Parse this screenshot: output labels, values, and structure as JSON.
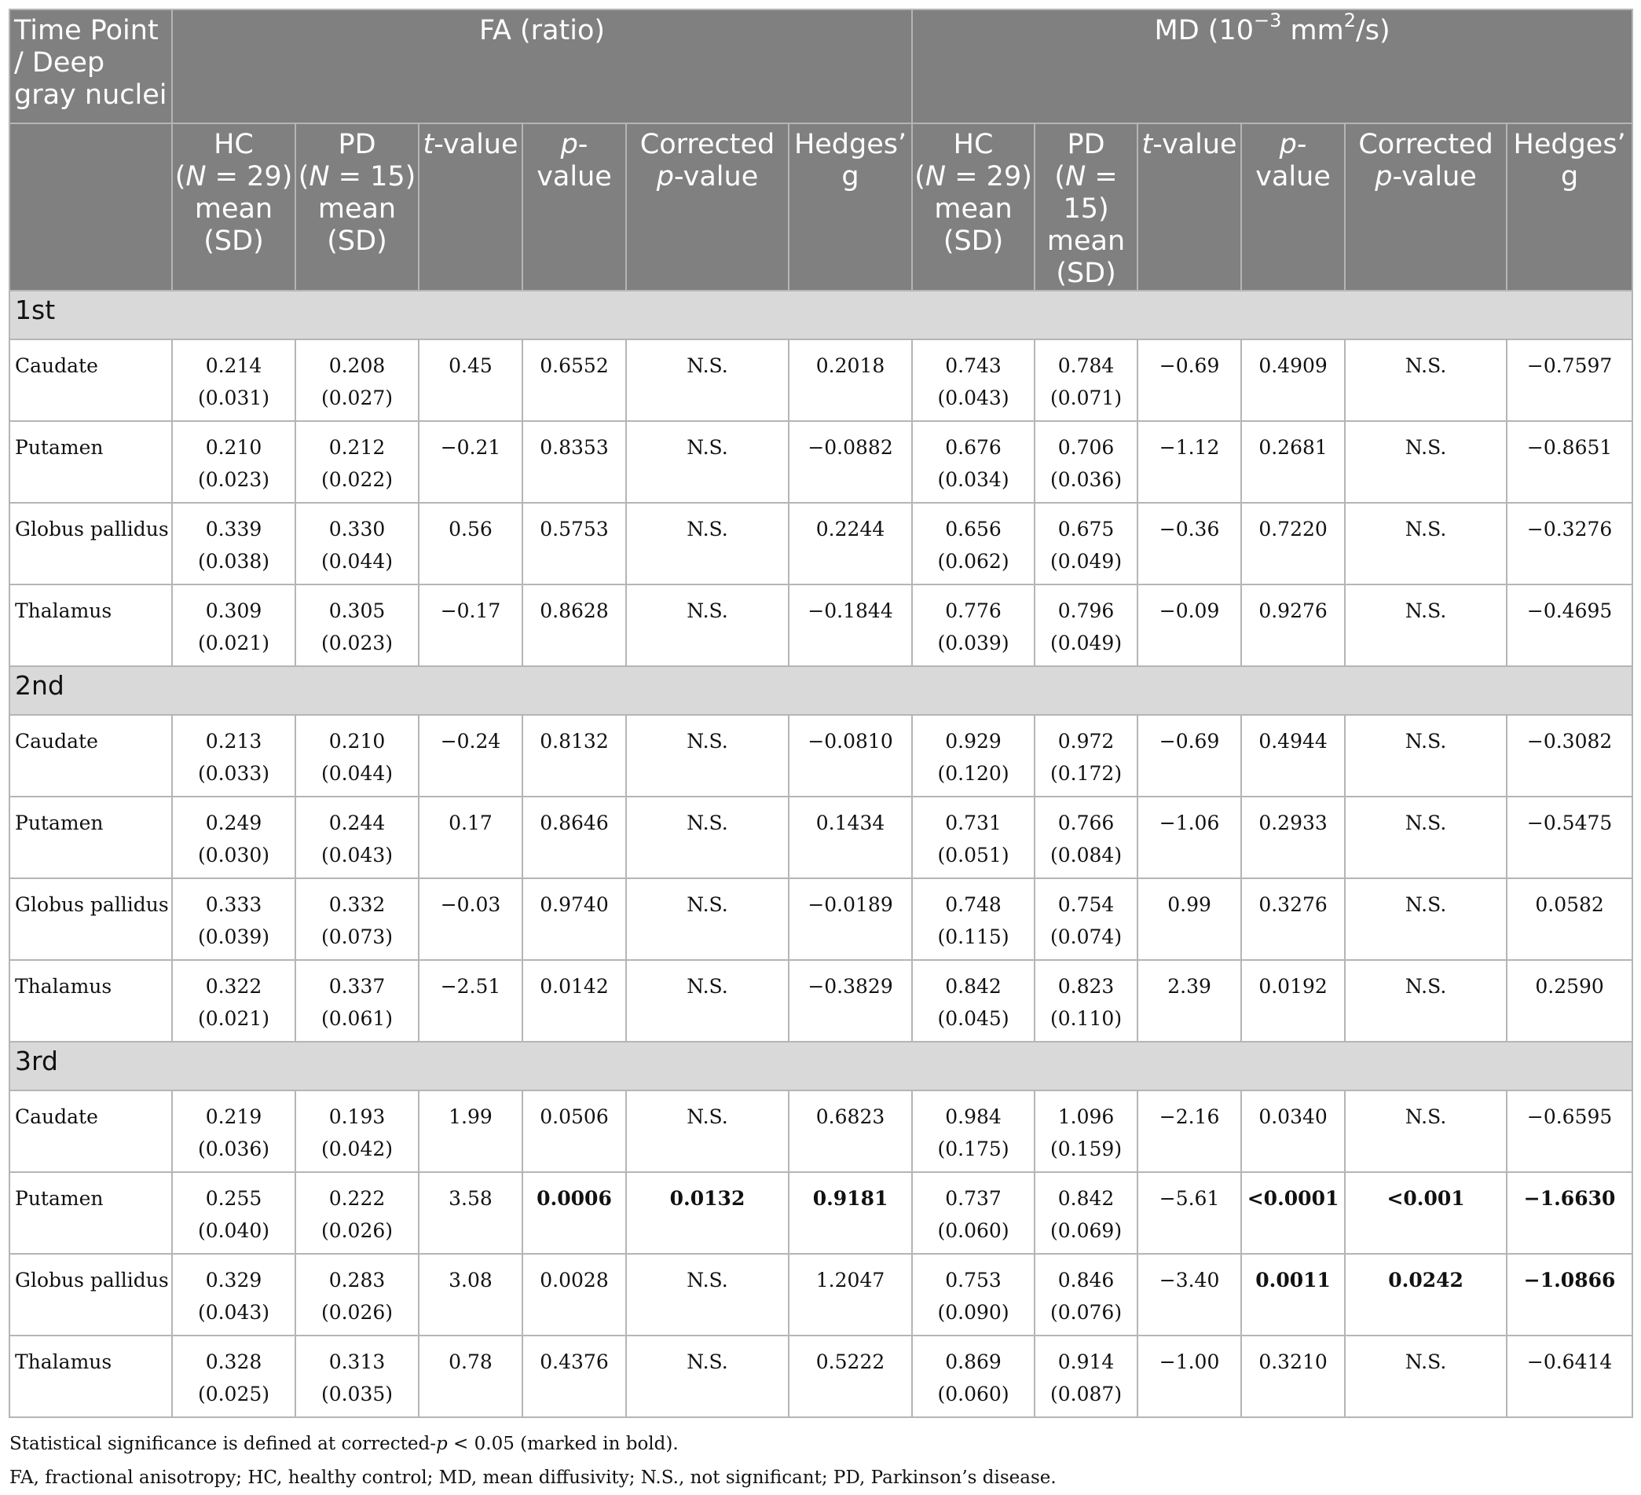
{
  "header": {
    "corner": "Time Point / Deep gray nuclei",
    "fa_group": "FA (ratio)",
    "md_group_prefix": "MD (10",
    "md_exp": "−3",
    "md_unit_mid": " mm",
    "md_unit_exp": "2",
    "md_unit_end": "/s)",
    "hc_label": "HC",
    "hc_n": "(N = 29)",
    "pd_label": "PD",
    "pd_n": "(N = 15)",
    "mean": "mean",
    "sd": "(SD)",
    "t_value": "t-value",
    "p_value": "p-value",
    "corrected_p": "Corrected p-value",
    "hedges": "Hedges’ g"
  },
  "sections": [
    {
      "label": "1st",
      "rows": [
        {
          "name": "Caudate",
          "fa": {
            "hc": [
              "0.214",
              "(0.031)"
            ],
            "pd": [
              "0.208",
              "(0.027)"
            ],
            "t": "0.45",
            "p": "0.6552",
            "cp": "N.S.",
            "g": "0.2018",
            "bold": []
          },
          "md": {
            "hc": [
              "0.743",
              "(0.043)"
            ],
            "pd": [
              "0.784",
              "(0.071)"
            ],
            "t": "−0.69",
            "p": "0.4909",
            "cp": "N.S.",
            "g": "−0.7597",
            "bold": []
          }
        },
        {
          "name": "Putamen",
          "fa": {
            "hc": [
              "0.210",
              "(0.023)"
            ],
            "pd": [
              "0.212",
              "(0.022)"
            ],
            "t": "−0.21",
            "p": "0.8353",
            "cp": "N.S.",
            "g": "−0.0882",
            "bold": []
          },
          "md": {
            "hc": [
              "0.676",
              "(0.034)"
            ],
            "pd": [
              "0.706",
              "(0.036)"
            ],
            "t": "−1.12",
            "p": "0.2681",
            "cp": "N.S.",
            "g": "−0.8651",
            "bold": []
          }
        },
        {
          "name": "Globus pallidus",
          "fa": {
            "hc": [
              "0.339",
              "(0.038)"
            ],
            "pd": [
              "0.330",
              "(0.044)"
            ],
            "t": "0.56",
            "p": "0.5753",
            "cp": "N.S.",
            "g": "0.2244",
            "bold": []
          },
          "md": {
            "hc": [
              "0.656",
              "(0.062)"
            ],
            "pd": [
              "0.675",
              "(0.049)"
            ],
            "t": "−0.36",
            "p": "0.7220",
            "cp": "N.S.",
            "g": "−0.3276",
            "bold": []
          }
        },
        {
          "name": "Thalamus",
          "fa": {
            "hc": [
              "0.309",
              "(0.021)"
            ],
            "pd": [
              "0.305",
              "(0.023)"
            ],
            "t": "−0.17",
            "p": "0.8628",
            "cp": "N.S.",
            "g": "−0.1844",
            "bold": []
          },
          "md": {
            "hc": [
              "0.776",
              "(0.039)"
            ],
            "pd": [
              "0.796",
              "(0.049)"
            ],
            "t": "−0.09",
            "p": "0.9276",
            "cp": "N.S.",
            "g": "−0.4695",
            "bold": []
          }
        }
      ]
    },
    {
      "label": "2nd",
      "rows": [
        {
          "name": "Caudate",
          "fa": {
            "hc": [
              "0.213",
              "(0.033)"
            ],
            "pd": [
              "0.210",
              "(0.044)"
            ],
            "t": "−0.24",
            "p": "0.8132",
            "cp": "N.S.",
            "g": "−0.0810",
            "bold": []
          },
          "md": {
            "hc": [
              "0.929",
              "(0.120)"
            ],
            "pd": [
              "0.972",
              "(0.172)"
            ],
            "t": "−0.69",
            "p": "0.4944",
            "cp": "N.S.",
            "g": "−0.3082",
            "bold": []
          }
        },
        {
          "name": "Putamen",
          "fa": {
            "hc": [
              "0.249",
              "(0.030)"
            ],
            "pd": [
              "0.244",
              "(0.043)"
            ],
            "t": "0.17",
            "p": "0.8646",
            "cp": "N.S.",
            "g": "0.1434",
            "bold": []
          },
          "md": {
            "hc": [
              "0.731",
              "(0.051)"
            ],
            "pd": [
              "0.766",
              "(0.084)"
            ],
            "t": "−1.06",
            "p": "0.2933",
            "cp": "N.S.",
            "g": "−0.5475",
            "bold": []
          }
        },
        {
          "name": "Globus pallidus",
          "fa": {
            "hc": [
              "0.333",
              "(0.039)"
            ],
            "pd": [
              "0.332",
              "(0.073)"
            ],
            "t": "−0.03",
            "p": "0.9740",
            "cp": "N.S.",
            "g": "−0.0189",
            "bold": []
          },
          "md": {
            "hc": [
              "0.748",
              "(0.115)"
            ],
            "pd": [
              "0.754",
              "(0.074)"
            ],
            "t": "0.99",
            "p": "0.3276",
            "cp": "N.S.",
            "g": "0.0582",
            "bold": []
          }
        },
        {
          "name": "Thalamus",
          "fa": {
            "hc": [
              "0.322",
              "(0.021)"
            ],
            "pd": [
              "0.337",
              "(0.061)"
            ],
            "t": "−2.51",
            "p": "0.0142",
            "cp": "N.S.",
            "g": "−0.3829",
            "bold": []
          },
          "md": {
            "hc": [
              "0.842",
              "(0.045)"
            ],
            "pd": [
              "0.823",
              "(0.110)"
            ],
            "t": "2.39",
            "p": "0.0192",
            "cp": "N.S.",
            "g": "0.2590",
            "bold": []
          }
        }
      ]
    },
    {
      "label": "3rd",
      "rows": [
        {
          "name": "Caudate",
          "fa": {
            "hc": [
              "0.219",
              "(0.036)"
            ],
            "pd": [
              "0.193",
              "(0.042)"
            ],
            "t": "1.99",
            "p": "0.0506",
            "cp": "N.S.",
            "g": "0.6823",
            "bold": []
          },
          "md": {
            "hc": [
              "0.984",
              "(0.175)"
            ],
            "pd": [
              "1.096",
              "(0.159)"
            ],
            "t": "−2.16",
            "p": "0.0340",
            "cp": "N.S.",
            "g": "−0.6595",
            "bold": []
          }
        },
        {
          "name": "Putamen",
          "fa": {
            "hc": [
              "0.255",
              "(0.040)"
            ],
            "pd": [
              "0.222",
              "(0.026)"
            ],
            "t": "3.58",
            "p": "0.0006",
            "cp": "0.0132",
            "g": "0.9181",
            "bold": [
              "p",
              "cp",
              "g"
            ]
          },
          "md": {
            "hc": [
              "0.737",
              "(0.060)"
            ],
            "pd": [
              "0.842",
              "(0.069)"
            ],
            "t": "−5.61",
            "p": "<0.0001",
            "cp": "<0.001",
            "g": "−1.6630",
            "bold": [
              "p",
              "cp",
              "g"
            ]
          }
        },
        {
          "name": "Globus pallidus",
          "fa": {
            "hc": [
              "0.329",
              "(0.043)"
            ],
            "pd": [
              "0.283",
              "(0.026)"
            ],
            "t": "3.08",
            "p": "0.0028",
            "cp": "N.S.",
            "g": "1.2047",
            "bold": []
          },
          "md": {
            "hc": [
              "0.753",
              "(0.090)"
            ],
            "pd": [
              "0.846",
              "(0.076)"
            ],
            "t": "−3.40",
            "p": "0.0011",
            "cp": "0.0242",
            "g": "−1.0866",
            "bold": [
              "p",
              "cp",
              "g"
            ]
          }
        },
        {
          "name": "Thalamus",
          "fa": {
            "hc": [
              "0.328",
              "(0.025)"
            ],
            "pd": [
              "0.313",
              "(0.035)"
            ],
            "t": "0.78",
            "p": "0.4376",
            "cp": "N.S.",
            "g": "0.5222",
            "bold": []
          },
          "md": {
            "hc": [
              "0.869",
              "(0.060)"
            ],
            "pd": [
              "0.914",
              "(0.087)"
            ],
            "t": "−1.00",
            "p": "0.3210",
            "cp": "N.S.",
            "g": "−0.6414",
            "bold": []
          }
        }
      ]
    }
  ],
  "notes": {
    "significance_prefix": "Statistical significance is defined at corrected-",
    "significance_p": "p",
    "significance_suffix": " < 0.05 (marked in bold).",
    "abbreviations": "FA, fractional anisotropy; HC, healthy control; MD, mean diffusivity; N.S., not significant; PD, Parkinson’s disease."
  }
}
